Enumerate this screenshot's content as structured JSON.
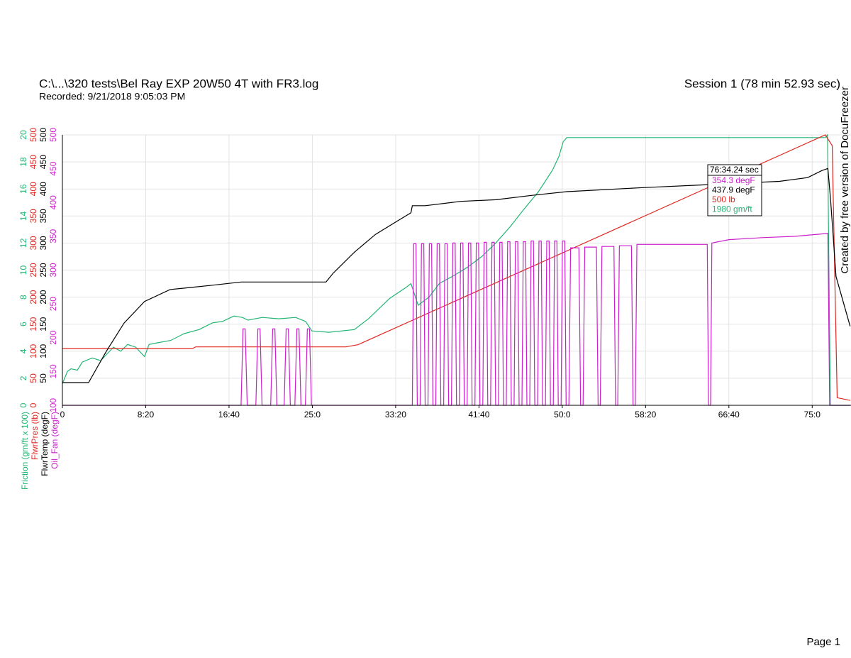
{
  "header": {
    "title": "C:\\...\\320 tests\\Bel Ray EXP 20W50 4T with FR3.log",
    "recorded": "Recorded: 9/21/2018 9:05:03 PM",
    "session": "Session 1 (78 min 52.93 sec)"
  },
  "watermark": "Created by free version of DocuFreezer",
  "footer": "Page 1",
  "chart_data": {
    "type": "line",
    "grid": true,
    "xlim": [
      0,
      4732.93
    ],
    "xticks": [
      0,
      {
        "value": 500,
        "label": "8:20"
      },
      {
        "value": 1000,
        "label": "16:40"
      },
      {
        "value": 1500,
        "label": "25:0"
      },
      {
        "value": 2000,
        "label": "33:20"
      },
      {
        "value": 2500,
        "label": "41:40"
      },
      {
        "value": 3000,
        "label": "50:0"
      },
      {
        "value": 3500,
        "label": "58:20"
      },
      {
        "value": 4000,
        "label": "66:40"
      },
      {
        "value": 4500,
        "label": "75:0"
      }
    ],
    "y_axes": [
      {
        "label": "Friction (gm/ft x 100)",
        "color": "#22b573",
        "lim": [
          0,
          20
        ],
        "ticks": [
          0,
          2,
          4,
          6,
          8,
          10,
          12,
          14,
          16,
          18,
          20
        ]
      },
      {
        "label": "FlwrPres (lb)",
        "color": "#e0261f",
        "lim": [
          0,
          500
        ],
        "ticks": [
          0,
          50,
          100,
          150,
          200,
          250,
          300,
          350,
          400,
          450,
          500
        ]
      },
      {
        "label": "FlwrTemp (degF)",
        "color": "#000000",
        "lim": [
          0,
          500
        ],
        "ticks": [
          50,
          100,
          150,
          200,
          250,
          300,
          350,
          400,
          450,
          500
        ]
      },
      {
        "label": "Oil_Fan (degF)",
        "color": "#cc1fcc",
        "lim": [
          100,
          500
        ],
        "ticks": [
          100,
          150,
          200,
          250,
          300,
          350,
          400,
          450,
          500
        ]
      }
    ],
    "series": [
      {
        "axis": 0,
        "color": "#22b573",
        "x": [
          0,
          30,
          51,
          90,
          120,
          179,
          230,
          306,
          350,
          391,
          440,
          493,
          520,
          561,
          650,
          731,
          820,
          901,
          960,
          1029,
          1080,
          1114,
          1200,
          1300,
          1400,
          1460,
          1497,
          1600,
          1752,
          1837,
          1964,
          2060,
          2092,
          2135,
          2200,
          2262,
          2350,
          2430,
          2517,
          2600,
          2687,
          2770,
          2857,
          2942,
          2980,
          3006,
          3027,
          4579,
          4592,
          4609,
          4728
        ],
        "values": [
          1.6,
          2.5,
          2.7,
          2.6,
          3.2,
          3.5,
          3.3,
          4.3,
          4.0,
          4.5,
          4.3,
          3.6,
          4.5,
          4.6,
          4.8,
          5.3,
          5.6,
          6.1,
          6.2,
          6.6,
          6.5,
          6.3,
          6.5,
          6.4,
          6.5,
          6.2,
          5.5,
          5.4,
          5.6,
          6.4,
          7.9,
          8.7,
          9.0,
          7.4,
          8.0,
          9.0,
          9.6,
          10.2,
          11.0,
          12.0,
          13.2,
          14.5,
          15.8,
          17.4,
          18.4,
          19.5,
          19.8,
          19.8,
          20,
          0,
          0
        ]
      },
      {
        "axis": 1,
        "color": "#e0261f",
        "x": [
          0,
          780,
          800,
          1700,
          1773,
          4579,
          4620,
          4650,
          4728
        ],
        "values": [
          105,
          105,
          108,
          108,
          112,
          500,
          480,
          14,
          9
        ]
      },
      {
        "axis": 2,
        "color": "#000000",
        "x": [
          0,
          157,
          264,
          370,
          493,
          646,
          774,
          901,
          1072,
          1327,
          1582,
          1624,
          1752,
          1879,
          2007,
          2092,
          2100,
          2177,
          2390,
          2602,
          2815,
          3027,
          3453,
          3878,
          4303,
          4473,
          4558,
          4594,
          4610,
          4643,
          4728
        ],
        "values": [
          42,
          42,
          100,
          152,
          192,
          214,
          218,
          222,
          228,
          228,
          228,
          244,
          283,
          316,
          340,
          356,
          369,
          369,
          377,
          380,
          388,
          395,
          402,
          408,
          414,
          421,
          434,
          437.9,
          382,
          238,
          146
        ]
      },
      {
        "axis": 3,
        "color": "#cc1fcc",
        "x": [
          0,
          1072,
          1084,
          1097,
          1109,
          1161,
          1173,
          1186,
          1198,
          1250,
          1262,
          1275,
          1287,
          1331,
          1343,
          1356,
          1368,
          1395,
          1407,
          1420,
          1432,
          1458,
          1470,
          1483,
          1495,
          2100,
          2108,
          2122,
          2130,
          2147,
          2155,
          2169,
          2177,
          2194,
          2202,
          2216,
          2224,
          2241,
          2249,
          2263,
          2271,
          2288,
          2296,
          2310,
          2318,
          2335,
          2343,
          2357,
          2365,
          2382,
          2390,
          2404,
          2412,
          2429,
          2437,
          2451,
          2459,
          2476,
          2484,
          2498,
          2506,
          2523,
          2531,
          2545,
          2553,
          2570,
          2578,
          2592,
          2600,
          2617,
          2625,
          2639,
          2647,
          2664,
          2672,
          2686,
          2694,
          2711,
          2719,
          2733,
          2741,
          2758,
          2766,
          2780,
          2788,
          2805,
          2813,
          2827,
          2835,
          2852,
          2860,
          2874,
          2882,
          2899,
          2907,
          2921,
          2929,
          2946,
          2954,
          2968,
          2976,
          2993,
          3001,
          3015,
          3023,
          3040,
          3050,
          3100,
          3110,
          3125,
          3135,
          3205,
          3215,
          3228,
          3238,
          3310,
          3320,
          3333,
          3343,
          3415,
          3425,
          3438,
          3448,
          3870,
          3878,
          3890,
          3898,
          4000,
          4200,
          4400,
          4579,
          4594,
          4605,
          4728
        ],
        "values": [
          100,
          100,
          213,
          213,
          100,
          100,
          213,
          213,
          100,
          100,
          213,
          213,
          100,
          100,
          213,
          213,
          100,
          100,
          213,
          213,
          100,
          100,
          213,
          213,
          100,
          100,
          339,
          339,
          100,
          100,
          339,
          339,
          100,
          100,
          339,
          339,
          100,
          100,
          339,
          339,
          100,
          100,
          339,
          339,
          100,
          100,
          340,
          340,
          100,
          100,
          340,
          340,
          100,
          100,
          340,
          340,
          100,
          100,
          340,
          340,
          100,
          100,
          341,
          341,
          100,
          100,
          341,
          341,
          100,
          100,
          341,
          341,
          100,
          100,
          342,
          342,
          100,
          100,
          342,
          342,
          100,
          100,
          342,
          342,
          100,
          100,
          343,
          343,
          100,
          100,
          343,
          343,
          100,
          100,
          343,
          343,
          100,
          100,
          343,
          343,
          100,
          100,
          343,
          343,
          100,
          100,
          333,
          333,
          100,
          100,
          334,
          334,
          100,
          100,
          335,
          335,
          100,
          100,
          336,
          336,
          100,
          100,
          338,
          338,
          100,
          100,
          340,
          345,
          348,
          350,
          354,
          354.3,
          100,
          100
        ]
      }
    ],
    "tooltip": {
      "time": "76:34.24 sec",
      "lines": [
        {
          "text": "354.3 degF",
          "color": "#cc1fcc"
        },
        {
          "text": "437.9 degF",
          "color": "#000000"
        },
        {
          "text": "500 lb",
          "color": "#e0261f"
        },
        {
          "text": "1980 gm/ft",
          "color": "#22b573"
        }
      ]
    }
  }
}
